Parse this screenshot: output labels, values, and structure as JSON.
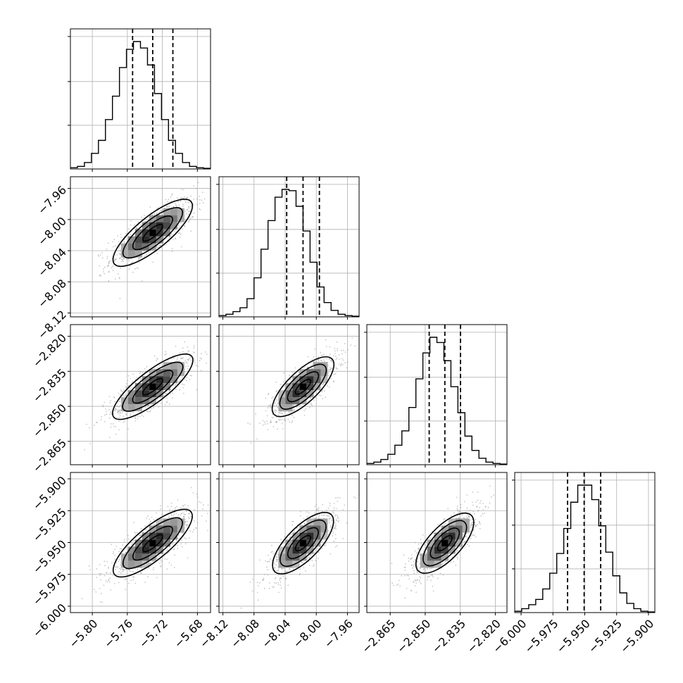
{
  "chart_data": {
    "type": "corner",
    "grid": true,
    "parameters": [
      {
        "range": [
          -5.825,
          -5.665
        ],
        "ticks": [
          "−5.80",
          "−5.76",
          "−5.72",
          "−5.68"
        ],
        "tick_values": [
          -5.8,
          -5.76,
          -5.72,
          -5.68
        ],
        "quantiles": [
          -5.754,
          -5.731,
          -5.708
        ],
        "histogram": [
          0.01,
          0.02,
          0.05,
          0.12,
          0.22,
          0.38,
          0.56,
          0.78,
          0.92,
          0.98,
          0.93,
          0.8,
          0.58,
          0.38,
          0.22,
          0.12,
          0.05,
          0.02,
          0.01,
          0.005
        ]
      },
      {
        "range": [
          -8.125,
          -7.945
        ],
        "ticks": [
          "−8.12",
          "−8.08",
          "−8.04",
          "−8.00",
          "−7.96"
        ],
        "tick_values": [
          -8.12,
          -8.08,
          -8.04,
          -8.0,
          -7.96
        ],
        "quantiles": [
          -8.038,
          -8.017,
          -7.996
        ],
        "histogram": [
          0.01,
          0.02,
          0.04,
          0.07,
          0.14,
          0.3,
          0.52,
          0.74,
          0.92,
          0.98,
          0.97,
          0.85,
          0.66,
          0.42,
          0.23,
          0.11,
          0.05,
          0.02,
          0.01,
          0.005
        ]
      },
      {
        "range": [
          -2.875,
          -2.815
        ],
        "ticks": [
          "−2.865",
          "−2.850",
          "−2.835",
          "−2.820"
        ],
        "tick_values": [
          -2.865,
          -2.85,
          -2.835,
          -2.82
        ],
        "quantiles": [
          -2.8483,
          -2.8416,
          -2.8349
        ],
        "histogram": [
          0.01,
          0.02,
          0.04,
          0.08,
          0.15,
          0.26,
          0.44,
          0.66,
          0.86,
          0.98,
          0.94,
          0.8,
          0.6,
          0.4,
          0.22,
          0.11,
          0.05,
          0.02,
          0.01,
          0.005
        ]
      },
      {
        "range": [
          -6.005,
          -5.895
        ],
        "ticks": [
          "−6.000",
          "−5.975",
          "−5.950",
          "−5.925",
          "−5.900"
        ],
        "tick_values": [
          -6.0,
          -5.975,
          -5.95,
          -5.925,
          -5.9
        ],
        "quantiles": [
          -5.9635,
          -5.9505,
          -5.9375
        ],
        "histogram": [
          0.01,
          0.03,
          0.06,
          0.1,
          0.18,
          0.3,
          0.45,
          0.64,
          0.84,
          0.97,
          0.97,
          0.86,
          0.66,
          0.46,
          0.28,
          0.15,
          0.07,
          0.03,
          0.01,
          0.005
        ]
      }
    ],
    "correlation": 0.78
  }
}
